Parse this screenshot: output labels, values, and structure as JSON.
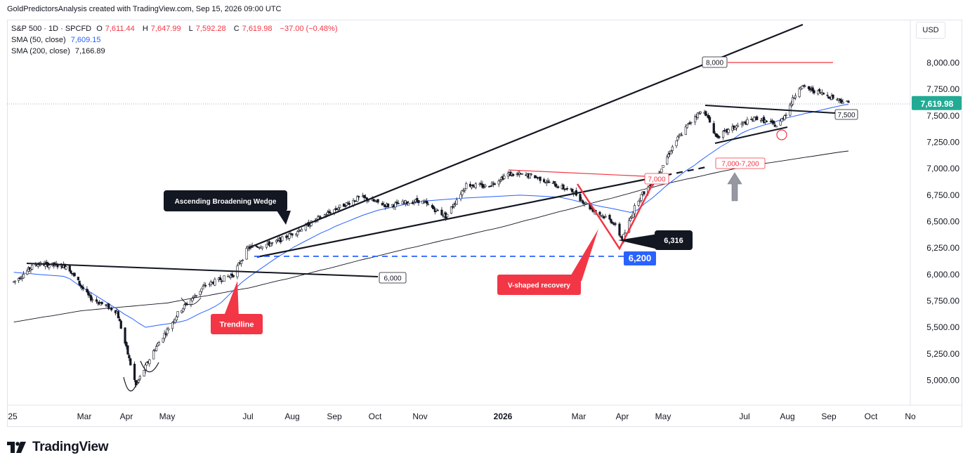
{
  "header": {
    "caption": "GoldPredictorsAnalysis created with TradingView.com, Sep 15, 2026 09:00 UTC"
  },
  "legend": {
    "symbol": "S&P 500 · 1D · SPCFD",
    "ohlc": {
      "o_label": "O",
      "o": "7,611.44",
      "h_label": "H",
      "h": "7,647.99",
      "l_label": "L",
      "l": "7,592.28",
      "c_label": "C",
      "c": "7,619.98",
      "change": "−37.00 (−0.48%)"
    },
    "sma50_label": "SMA (50, close)",
    "sma50_value": "7,609.15",
    "sma200_label": "SMA (200, close)",
    "sma200_value": "7,166.89"
  },
  "currency": "USD",
  "brand": "TradingView",
  "colors": {
    "up": "#26a69a",
    "down": "#ef5350",
    "candle": "#131722",
    "sma50": "#2962ff",
    "sma200": "#131722",
    "annotation_red": "#f23645",
    "annotation_blue": "#2962ff",
    "annotation_dark": "#131722",
    "price_tag": "#22ab94"
  },
  "chart_data": {
    "type": "line",
    "x_axis_labels": [
      "25",
      "Mar",
      "Apr",
      "May",
      "Jul",
      "Aug",
      "Sep",
      "Oct",
      "Nov",
      "2026",
      "Mar",
      "Apr",
      "May",
      "Jul",
      "Aug",
      "Sep",
      "Oct",
      "No"
    ],
    "y_axis_labels": [
      "8,000.00",
      "7,750.00",
      "7,500.00",
      "7,250.00",
      "7,000.00",
      "6,750.00",
      "6,500.00",
      "6,250.00",
      "6,000.00",
      "5,750.00",
      "5,500.00",
      "5,250.00",
      "5,000.00"
    ],
    "ylim": [
      4800,
      8300
    ],
    "last_price": "7,619.98",
    "series": [
      {
        "name": "S&P 500 · 1D · SPCFD",
        "x": [
          "2025-01-02",
          "2025-01-20",
          "2025-02-15",
          "2025-03-05",
          "2025-03-25",
          "2025-04-08",
          "2025-04-22",
          "2025-05-10",
          "2025-05-30",
          "2025-06-20",
          "2025-07-01",
          "2025-07-20",
          "2025-08-10",
          "2025-08-30",
          "2025-09-20",
          "2025-10-10",
          "2025-11-01",
          "2025-11-20",
          "2025-12-05",
          "2025-12-20",
          "2026-01-05",
          "2026-01-25",
          "2026-02-10",
          "2026-02-25",
          "2026-03-10",
          "2026-03-25",
          "2026-04-01",
          "2026-04-12",
          "2026-04-25",
          "2026-05-10",
          "2026-05-25",
          "2026-06-01",
          "2026-06-10",
          "2026-06-25",
          "2026-07-10",
          "2026-07-25",
          "2026-08-01",
          "2026-08-10",
          "2026-08-25",
          "2026-09-15"
        ],
        "values": [
          5930,
          6100,
          6080,
          5780,
          5650,
          4950,
          5300,
          5650,
          5900,
          6000,
          6250,
          6300,
          6450,
          6600,
          6730,
          6650,
          6700,
          6550,
          6850,
          6830,
          6950,
          6930,
          6850,
          6780,
          6620,
          6500,
          6330,
          6700,
          6900,
          7250,
          7500,
          7550,
          7300,
          7400,
          7480,
          7400,
          7550,
          7780,
          7720,
          7620
        ]
      },
      {
        "name": "SMA (50, close)",
        "x": [
          "2025-01-02",
          "2025-02-15",
          "2025-03-25",
          "2025-04-15",
          "2025-05-15",
          "2025-06-10",
          "2025-07-01",
          "2025-08-01",
          "2025-09-01",
          "2025-10-01",
          "2025-11-01",
          "2025-12-01",
          "2026-01-15",
          "2026-02-15",
          "2026-03-15",
          "2026-04-10",
          "2026-05-05",
          "2026-06-01",
          "2026-07-01",
          "2026-08-01",
          "2026-09-15"
        ],
        "values": [
          6020,
          5980,
          5680,
          5500,
          5560,
          5720,
          5970,
          6250,
          6450,
          6600,
          6690,
          6720,
          6750,
          6730,
          6650,
          6580,
          6850,
          7100,
          7350,
          7480,
          7609
        ]
      },
      {
        "name": "SMA (200, close)",
        "x": [
          "2025-01-02",
          "2025-03-01",
          "2025-05-01",
          "2025-07-01",
          "2025-09-01",
          "2025-11-01",
          "2026-01-01",
          "2026-03-01",
          "2026-05-01",
          "2026-07-01",
          "2026-09-15"
        ],
        "values": [
          5550,
          5660,
          5730,
          5870,
          6070,
          6270,
          6450,
          6640,
          6850,
          7020,
          7167
        ]
      }
    ],
    "annotations": [
      {
        "text": "Ascending Broadening Wedge"
      },
      {
        "text": "Trendline"
      },
      {
        "text": "V-shaped recovery"
      },
      {
        "text": "6,316",
        "value": 6316
      },
      {
        "text": "6,200",
        "value": 6200
      },
      {
        "text": "6,000",
        "value": 6000
      },
      {
        "text": "7,000",
        "value": 7000
      },
      {
        "text": "7,000-7,200",
        "range": [
          7000,
          7200
        ]
      },
      {
        "text": "8,000",
        "value": 8000
      },
      {
        "text": "7,500",
        "value": 7500
      }
    ]
  }
}
